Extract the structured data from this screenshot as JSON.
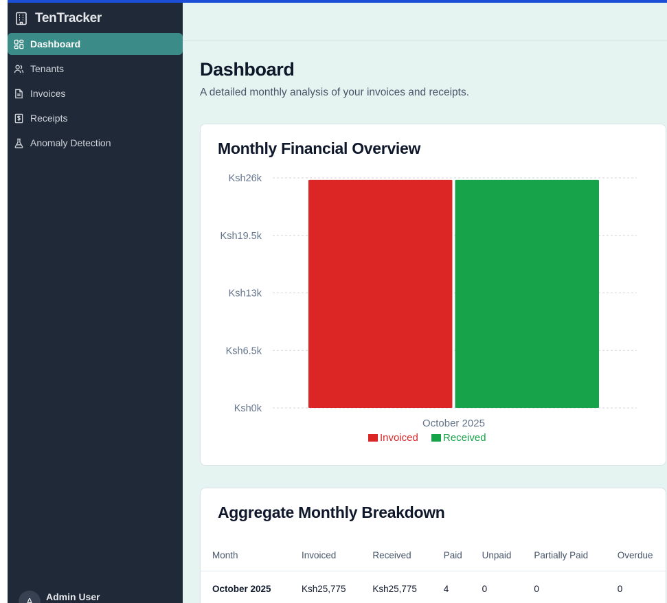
{
  "app": {
    "name": "TenTracker"
  },
  "sidebar": {
    "items": [
      {
        "label": "Dashboard",
        "icon": "dashboard-icon",
        "active": true
      },
      {
        "label": "Tenants",
        "icon": "users-icon",
        "active": false
      },
      {
        "label": "Invoices",
        "icon": "file-icon",
        "active": false
      },
      {
        "label": "Receipts",
        "icon": "receipt-icon",
        "active": false
      },
      {
        "label": "Anomaly Detection",
        "icon": "flask-icon",
        "active": false
      }
    ],
    "user": {
      "name": "Admin User",
      "initial": "A"
    }
  },
  "page": {
    "title": "Dashboard",
    "subtitle": "A detailed monthly analysis of your invoices and receipts."
  },
  "overview": {
    "title": "Monthly Financial Overview"
  },
  "chart_data": {
    "type": "bar",
    "categories": [
      "October 2025"
    ],
    "series": [
      {
        "name": "Invoiced",
        "values": [
          25775
        ],
        "color": "#dc2626"
      },
      {
        "name": "Received",
        "values": [
          25775
        ],
        "color": "#16a34a"
      }
    ],
    "y_ticks": [
      "Ksh0k",
      "Ksh6.5k",
      "Ksh13k",
      "Ksh19.5k",
      "Ksh26k"
    ],
    "ylim": [
      0,
      26000
    ],
    "grid": "horizontal dashed",
    "legend": "bottom"
  },
  "breakdown": {
    "title": "Aggregate Monthly Breakdown",
    "columns": [
      "Month",
      "Invoiced",
      "Received",
      "Paid",
      "Unpaid",
      "Partially Paid",
      "Overdue"
    ],
    "rows": [
      [
        "October 2025",
        "Ksh25,775",
        "Ksh25,775",
        "4",
        "0",
        "0",
        "0"
      ]
    ]
  },
  "colors": {
    "sidebar_bg": "#1f2937",
    "active_nav": "#3b8c88",
    "page_bg": "#e6f4f1",
    "invoiced": "#dc2626",
    "received": "#16a34a"
  }
}
